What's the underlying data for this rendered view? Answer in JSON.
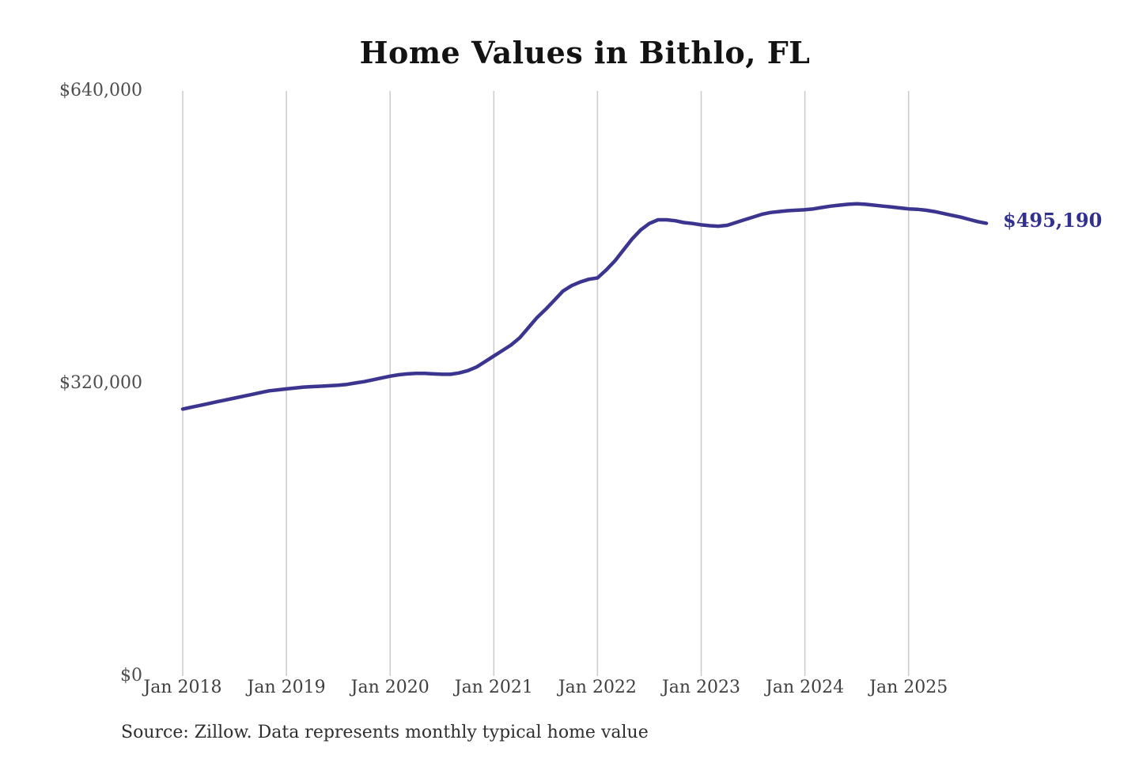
{
  "title": "Home Values in Bithlo, FL",
  "source_note": "Source: Zillow. Data represents monthly typical home value",
  "colors": {
    "line": "#3b3590",
    "end_label_text": "#32308f",
    "grid": "#cbcbcb",
    "title_text": "#131313",
    "y_axis_text": "#4d4d4d",
    "x_axis_text": "#3f3f3f",
    "source_text": "#2e2e2e",
    "background": "#ffffff"
  },
  "chart_data": {
    "type": "line",
    "title": "Home Values in Bithlo, FL",
    "xlabel": "",
    "ylabel": "",
    "legend": "none",
    "grid": "vertical-only",
    "y_range": [
      0,
      640000
    ],
    "y_ticks": [
      {
        "label": "$0",
        "value": 0
      },
      {
        "label": "$320,000",
        "value": 320000
      },
      {
        "label": "$640,000",
        "value": 640000
      }
    ],
    "x_tick_labels": [
      "Jan 2018",
      "Jan 2019",
      "Jan 2020",
      "Jan 2021",
      "Jan 2022",
      "Jan 2023",
      "Jan 2024",
      "Jan 2025"
    ],
    "x_start_month": "Jan 2018",
    "x_end_month": "Oct 2025",
    "last_value": 495190,
    "last_point_label": "$495,190",
    "series": [
      {
        "name": "Monthly typical home value",
        "monthly_values": [
          292000,
          294000,
          296000,
          298000,
          300000,
          302000,
          304000,
          306000,
          308000,
          310000,
          312000,
          313000,
          314000,
          315000,
          316000,
          316500,
          317000,
          317500,
          318000,
          319000,
          320500,
          322000,
          324000,
          326000,
          328000,
          329500,
          330500,
          331000,
          331000,
          330500,
          330000,
          330000,
          331500,
          334000,
          338000,
          344000,
          350000,
          356000,
          362000,
          370000,
          381000,
          392000,
          401000,
          411000,
          421000,
          427000,
          431000,
          434000,
          435500,
          444000,
          454000,
          466000,
          478000,
          488000,
          495000,
          499000,
          499000,
          498000,
          496000,
          495000,
          493500,
          492500,
          492000,
          493000,
          496000,
          499000,
          502000,
          505000,
          507000,
          508000,
          509000,
          509500,
          510000,
          511000,
          512500,
          514000,
          515000,
          516000,
          516500,
          516000,
          515000,
          514000,
          513000,
          512000,
          511000,
          510500,
          509500,
          508000,
          506000,
          504000,
          502000,
          499500,
          497000,
          495190
        ]
      }
    ]
  }
}
